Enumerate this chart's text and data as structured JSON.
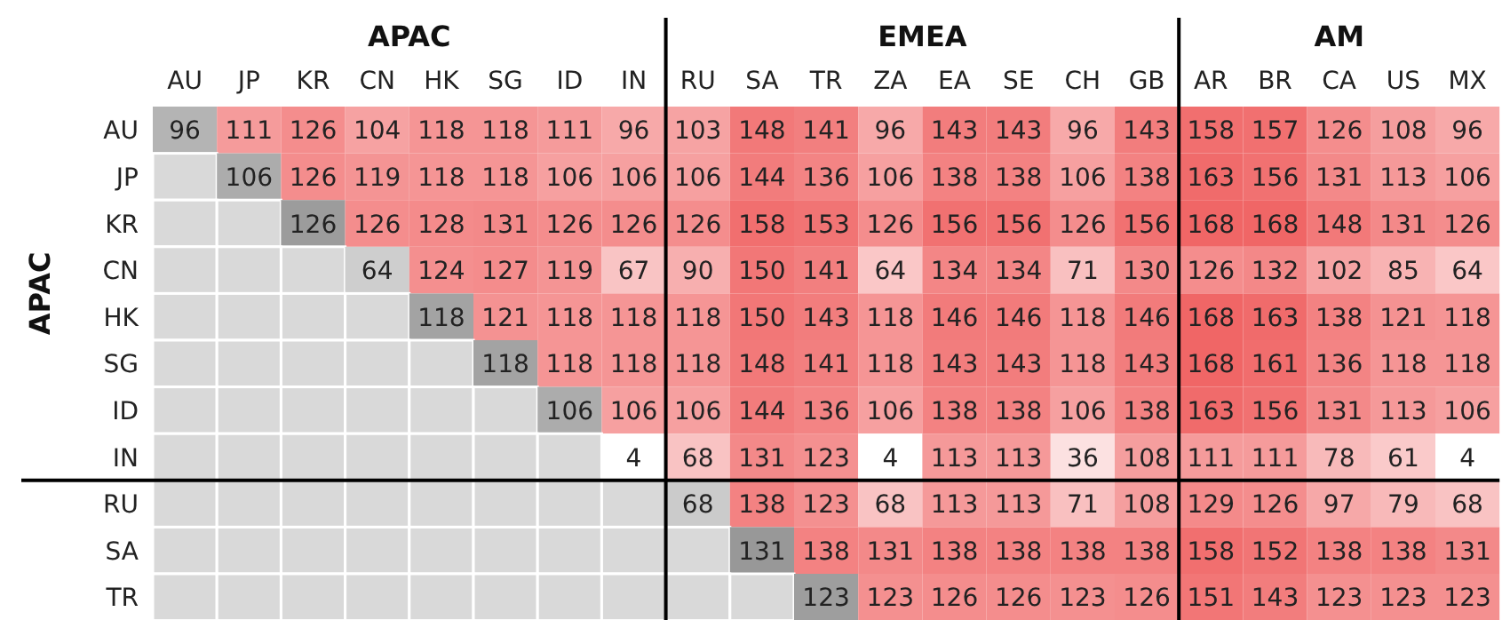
{
  "chart_data": {
    "type": "heatmap",
    "categories": [
      "AU",
      "JP",
      "KR",
      "CN",
      "HK",
      "SG",
      "ID",
      "IN",
      "RU",
      "SA",
      "TR",
      "ZA",
      "EA",
      "SE",
      "CH",
      "GB",
      "AR",
      "BR",
      "CA",
      "US",
      "MX"
    ],
    "y_categories": [
      "AU",
      "JP",
      "KR",
      "CN",
      "HK",
      "SG",
      "ID",
      "IN",
      "RU",
      "SA",
      "TR"
    ],
    "cells": [
      [
        96,
        111,
        126,
        104,
        118,
        118,
        111,
        96,
        103,
        148,
        141,
        96,
        143,
        143,
        96,
        143,
        158,
        157,
        126,
        108,
        96
      ],
      [
        null,
        106,
        126,
        119,
        118,
        118,
        106,
        106,
        106,
        144,
        136,
        106,
        138,
        138,
        106,
        138,
        163,
        156,
        131,
        113,
        106
      ],
      [
        null,
        null,
        126,
        126,
        128,
        131,
        126,
        126,
        126,
        158,
        153,
        126,
        156,
        156,
        126,
        156,
        168,
        168,
        148,
        131,
        126
      ],
      [
        null,
        null,
        null,
        64,
        124,
        127,
        119,
        67,
        90,
        150,
        141,
        64,
        134,
        134,
        71,
        130,
        126,
        132,
        102,
        85,
        64
      ],
      [
        null,
        null,
        null,
        null,
        118,
        121,
        118,
        118,
        118,
        150,
        143,
        118,
        146,
        146,
        118,
        146,
        168,
        163,
        138,
        121,
        118
      ],
      [
        null,
        null,
        null,
        null,
        null,
        118,
        118,
        118,
        118,
        148,
        141,
        118,
        143,
        143,
        118,
        143,
        168,
        161,
        136,
        118,
        118
      ],
      [
        null,
        null,
        null,
        null,
        null,
        null,
        106,
        106,
        106,
        144,
        136,
        106,
        138,
        138,
        106,
        138,
        163,
        156,
        131,
        113,
        106
      ],
      [
        null,
        null,
        null,
        null,
        null,
        null,
        null,
        4,
        68,
        131,
        123,
        4,
        113,
        113,
        36,
        108,
        111,
        111,
        78,
        61,
        4
      ],
      [
        null,
        null,
        null,
        null,
        null,
        null,
        null,
        null,
        68,
        138,
        123,
        68,
        113,
        113,
        71,
        108,
        129,
        126,
        97,
        79,
        68
      ],
      [
        null,
        null,
        null,
        null,
        null,
        null,
        null,
        null,
        null,
        131,
        138,
        131,
        138,
        138,
        138,
        138,
        158,
        152,
        138,
        138,
        131
      ],
      [
        null,
        null,
        null,
        null,
        null,
        null,
        null,
        null,
        null,
        null,
        123,
        123,
        126,
        126,
        123,
        126,
        151,
        143,
        123,
        123,
        123
      ]
    ],
    "data_labels": true,
    "annotations": [
      "APAC",
      "EMEA",
      "AM",
      "APAC"
    ]
  }
}
